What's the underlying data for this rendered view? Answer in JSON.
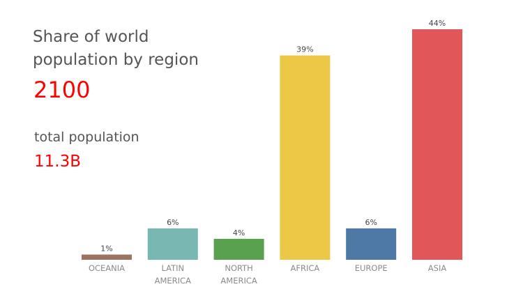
{
  "title_lines": [
    "Share of world",
    "population by region"
  ],
  "year": "2100",
  "total_label": "total population",
  "total_value": "11.3B",
  "chart_data": {
    "type": "bar",
    "title": "Share of world population by region",
    "xlabel": "",
    "ylabel": "",
    "ylim": [
      0,
      44
    ],
    "grid": false,
    "categories": [
      [
        "OCEANIA"
      ],
      [
        "LATIN",
        "AMERICA"
      ],
      [
        "NORTH",
        "AMERICA"
      ],
      [
        "AFRICA"
      ],
      [
        "EUROPE"
      ],
      [
        "ASIA"
      ]
    ],
    "values": [
      1,
      6,
      4,
      39,
      6,
      44
    ],
    "value_labels": [
      "1%",
      "6%",
      "4%",
      "39%",
      "6%",
      "44%"
    ],
    "colors": [
      "#9c7562",
      "#79b8b2",
      "#59a14f",
      "#ecc846",
      "#4e78a6",
      "#e15759"
    ]
  }
}
